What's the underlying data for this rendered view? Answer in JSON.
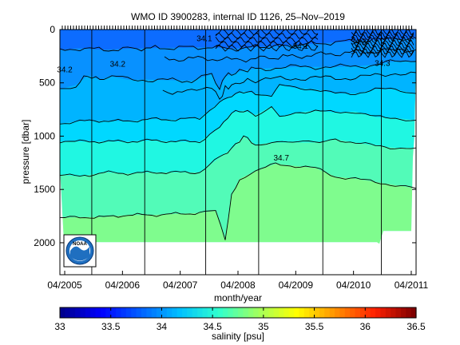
{
  "chart_data": {
    "type": "heatmap",
    "title": "WMO ID 3900283, internal ID 1126, 25–Nov–2019",
    "xlabel": "month/year",
    "ylabel": "pressure [dbar]",
    "colorbar_label": "salinity [psu]",
    "x_ticks": [
      "04/2005",
      "04/2006",
      "04/2007",
      "04/2008",
      "04/2009",
      "04/2010",
      "04/2011"
    ],
    "x_range": [
      "2005-03",
      "2011-05"
    ],
    "y_ticks": [
      0,
      500,
      1000,
      1500,
      2000
    ],
    "y_range": [
      0,
      2300
    ],
    "y_reversed": true,
    "colorbar_ticks": [
      33,
      33.5,
      34,
      34.5,
      35,
      35.5,
      36,
      36.5
    ],
    "colorbar_range": [
      33,
      36.5
    ],
    "colormap": [
      "#00008f",
      "#0000ff",
      "#0060ff",
      "#00c0ff",
      "#2fffcf",
      "#9fff60",
      "#ffff00",
      "#ff9000",
      "#ff2000",
      "#800000"
    ],
    "contour_labels": [
      {
        "text": "34.2",
        "date": "2006-03",
        "pressure": 320
      },
      {
        "text": "34.2",
        "date": "2005-04",
        "pressure": 370
      },
      {
        "text": "34.1",
        "date": "2007-09",
        "pressure": 80
      },
      {
        "text": "34.1",
        "date": "2009-05",
        "pressure": 150
      },
      {
        "text": "34.2",
        "date": "2010-05",
        "pressure": 110
      },
      {
        "text": "34.3",
        "date": "2010-10",
        "pressure": 310
      },
      {
        "text": "34.7",
        "date": "2009-01",
        "pressure": 1200
      }
    ],
    "salinity_layers": [
      {
        "from_psu": 34.1,
        "to_psu": 34.2,
        "top": 0,
        "color": "#0c6cff"
      },
      {
        "from_psu": 34.2,
        "to_psu": 34.3,
        "top": 180,
        "color": "#0891ff"
      },
      {
        "from_psu": 34.3,
        "to_psu": 34.4,
        "top": 560,
        "color": "#00b4ff"
      },
      {
        "from_psu": 34.4,
        "to_psu": 34.5,
        "top": 850,
        "color": "#00d8ff"
      },
      {
        "from_psu": 34.5,
        "to_psu": 34.6,
        "top": 1050,
        "color": "#20f7e2"
      },
      {
        "from_psu": 34.6,
        "to_psu": 34.7,
        "top": 1350,
        "color": "#52fbb8"
      },
      {
        "from_psu": 34.7,
        "to_psu": 34.8,
        "top": 1750,
        "color": "#7ffc8e"
      }
    ],
    "profile_dates": [
      "2005-09-20",
      "2006-08-20",
      "2007-09-10",
      "2008-08-10",
      "2009-09-20",
      "2010-09-25"
    ]
  },
  "logo": {
    "text": "NOAA"
  }
}
